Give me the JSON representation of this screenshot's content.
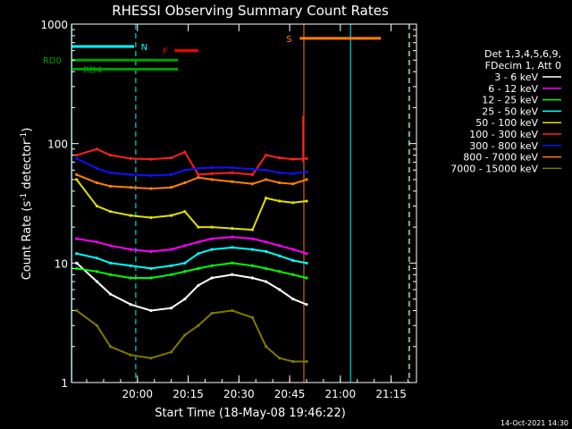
{
  "chart_data": {
    "type": "line",
    "title": "RHESSI Observing Summary Count Rates",
    "xlabel": "Start Time (18-May-08 19:46:22)",
    "ylabel_main": "Count Rate (s",
    "ylabel_sup1": "-1",
    "ylabel_mid": " detector",
    "ylabel_sup2": "-1",
    "ylabel_end": ")",
    "footer": "14-Oct-2021 14:30",
    "x_range_min": [
      -3.5,
      28.0
    ],
    "y_scale": "log",
    "y_range": [
      1,
      1000
    ],
    "x_ticks": [
      {
        "v": 16,
        "label": "20:00"
      },
      {
        "v": 31,
        "label": "20:15"
      },
      {
        "v": 46,
        "label": "20:30"
      },
      {
        "v": 61,
        "label": "20:45"
      },
      {
        "v": 76,
        "label": "21:00"
      },
      {
        "v": 91,
        "label": "21:15"
      }
    ],
    "y_ticks": [
      {
        "v": 1,
        "label": "1"
      },
      {
        "v": 10,
        "label": "10"
      },
      {
        "v": 100,
        "label": "100"
      },
      {
        "v": 1000,
        "label": "1000"
      }
    ],
    "legend_header": [
      "Det 1,3,4,5,6,9,",
      "FDecim 1, Att 0"
    ],
    "series": [
      {
        "name": "3 - 6 keV",
        "color": "#ffffff",
        "x": [
          -2,
          4,
          8,
          14,
          20,
          26,
          30,
          34,
          38,
          44,
          50,
          54,
          58,
          62,
          66
        ],
        "values": [
          10,
          7,
          5.5,
          4.5,
          4,
          4.2,
          5,
          6.5,
          7.5,
          8,
          7.5,
          7,
          6,
          5,
          4.5
        ]
      },
      {
        "name": "6 - 12 keV",
        "color": "#ff00ff",
        "x": [
          -2,
          4,
          8,
          14,
          20,
          26,
          30,
          34,
          38,
          44,
          50,
          54,
          58,
          62,
          66
        ],
        "values": [
          16,
          15,
          14,
          13,
          12.5,
          13,
          14,
          15,
          16,
          16.5,
          16,
          15,
          14,
          13,
          12
        ]
      },
      {
        "name": "12 - 25 keV",
        "color": "#00ff00",
        "x": [
          -2,
          4,
          8,
          14,
          20,
          26,
          30,
          34,
          38,
          44,
          50,
          54,
          58,
          62,
          66
        ],
        "values": [
          9,
          8.5,
          8,
          7.5,
          7.5,
          8,
          8.5,
          9,
          9.5,
          10,
          9.5,
          9,
          8.5,
          8,
          7.5
        ]
      },
      {
        "name": "25 - 50 keV",
        "color": "#00ffff",
        "x": [
          -2,
          4,
          8,
          14,
          20,
          26,
          30,
          34,
          38,
          44,
          50,
          54,
          58,
          62,
          66
        ],
        "values": [
          12,
          11,
          10,
          9.5,
          9,
          9.5,
          10,
          12,
          13,
          13.5,
          13,
          12.5,
          11.5,
          10.5,
          10
        ]
      },
      {
        "name": "50 - 100 keV",
        "color": "#e0e000",
        "x": [
          -2,
          4,
          8,
          14,
          20,
          26,
          30,
          34,
          38,
          44,
          50,
          54,
          58,
          62,
          66
        ],
        "values": [
          50,
          30,
          27,
          25,
          24,
          25,
          27,
          20,
          20,
          19.5,
          19,
          35,
          33,
          32,
          33
        ]
      },
      {
        "name": "100 - 300 keV",
        "color": "#ff2020",
        "x": [
          -2,
          4,
          8,
          14,
          20,
          26,
          30,
          34,
          38,
          44,
          50,
          54,
          58,
          62,
          66
        ],
        "values": [
          80,
          90,
          80,
          75,
          74,
          76,
          85,
          55,
          56,
          57,
          55,
          80,
          76,
          74,
          75
        ]
      },
      {
        "name": "300 - 800 keV",
        "color": "#1010ff",
        "x": [
          -2,
          4,
          8,
          14,
          20,
          26,
          30,
          34,
          38,
          44,
          50,
          54,
          58,
          62,
          66
        ],
        "values": [
          75,
          62,
          57,
          55,
          54,
          55,
          60,
          62,
          63,
          63,
          61,
          60,
          57,
          56,
          58
        ]
      },
      {
        "name": "800 - 7000 keV",
        "color": "#ff8000",
        "x": [
          -2,
          4,
          8,
          14,
          20,
          26,
          30,
          34,
          38,
          44,
          50,
          54,
          58,
          62,
          66
        ],
        "values": [
          55,
          47,
          44,
          43,
          42,
          43,
          47,
          52,
          50,
          48,
          46,
          50,
          47,
          46,
          50
        ]
      },
      {
        "name": "7000 - 15000 keV",
        "color": "#807800",
        "x": [
          -2,
          4,
          8,
          14,
          20,
          26,
          30,
          34,
          38,
          44,
          50,
          54,
          58,
          62,
          66
        ],
        "values": [
          4,
          3,
          2,
          1.7,
          1.6,
          1.8,
          2.5,
          3,
          3.8,
          4,
          3.5,
          2,
          1.6,
          1.5,
          1.5
        ]
      }
    ],
    "bars": [
      {
        "label": "N",
        "color": "#00ffff",
        "y": 650,
        "x": [
          -3.5,
          15
        ],
        "label_x": 17
      },
      {
        "label": "F",
        "color": "#ff0000",
        "y": 600,
        "x": [
          27,
          34
        ],
        "label_x": 23.5
      },
      {
        "label": "S",
        "color": "#ff8000",
        "y": 760,
        "x": [
          64,
          88
        ],
        "label_x": 60
      },
      {
        "label": "RD0",
        "color": "#00a000",
        "y": 500,
        "x": [
          -3.5,
          28
        ],
        "label_x": -12
      },
      {
        "label": "RD4",
        "color": "#00a000",
        "y": 420,
        "x": [
          -3.5,
          28
        ],
        "label_x": 0
      }
    ],
    "vlines": [
      {
        "x": -3.4,
        "color": "#00ffff",
        "style": "solid"
      },
      {
        "x": 15.5,
        "color": "#00ffff",
        "style": "dashed"
      },
      {
        "x": 65.2,
        "color": "#ff8000",
        "style": "solid"
      },
      {
        "x": 79,
        "color": "#00ffff",
        "style": "solid"
      },
      {
        "x": 96.2,
        "color": "#00ffff",
        "style": "dashed"
      },
      {
        "x": 96.5,
        "color": "#ff8000",
        "style": "dashed"
      }
    ]
  }
}
